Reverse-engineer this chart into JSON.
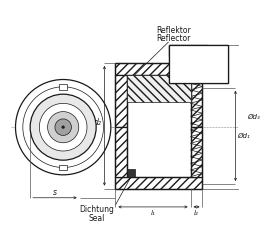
{
  "bg_color": "#ffffff",
  "lc": "#1a1a1a",
  "lw_main": 0.9,
  "lw_thin": 0.5,
  "lw_dim": 0.5,
  "fs_label": 5.5,
  "fs_small": 5.0,
  "labels": {
    "reflektor": "Reflektor",
    "reflector": "Reflector",
    "dichtung": "Dichtung",
    "seal": "Seal",
    "d2": "d₂",
    "d1": "Ød₁",
    "d3": "Ød₃",
    "s": "s",
    "l1": "l₁",
    "l2": "l₂"
  }
}
